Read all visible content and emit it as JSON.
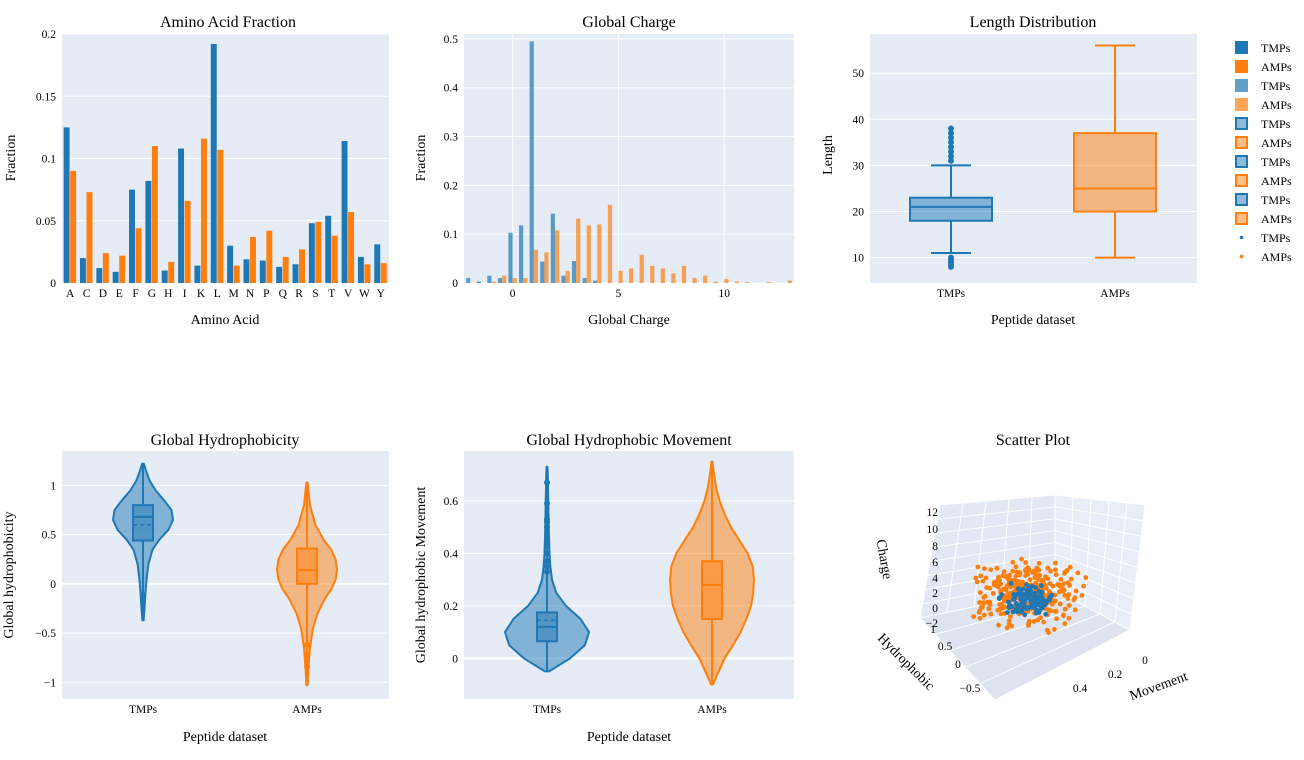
{
  "colors": {
    "tmp": "#1f77b4",
    "amp": "#ff7f0e",
    "plot_bg": "#e5ecf6",
    "grid": "#ffffff"
  },
  "legend": {
    "items": [
      {
        "label": "TMPs",
        "series": "tmp",
        "kind": "bar"
      },
      {
        "label": "AMPs",
        "series": "amp",
        "kind": "bar"
      },
      {
        "label": "TMPs",
        "series": "tmp",
        "kind": "hist"
      },
      {
        "label": "AMPs",
        "series": "amp",
        "kind": "hist"
      },
      {
        "label": "TMPs",
        "series": "tmp",
        "kind": "box"
      },
      {
        "label": "AMPs",
        "series": "amp",
        "kind": "box"
      },
      {
        "label": "TMPs",
        "series": "tmp",
        "kind": "box"
      },
      {
        "label": "AMPs",
        "series": "amp",
        "kind": "box"
      },
      {
        "label": "TMPs",
        "series": "tmp",
        "kind": "box"
      },
      {
        "label": "AMPs",
        "series": "amp",
        "kind": "box"
      },
      {
        "label": "TMPs",
        "series": "tmp",
        "kind": "dot"
      },
      {
        "label": "AMPs",
        "series": "amp",
        "kind": "dot"
      }
    ]
  },
  "chart_data": [
    {
      "id": "aa",
      "type": "bar",
      "title": "Amino Acid Fraction",
      "xlabel": "Amino Acid",
      "ylabel": "Fraction",
      "ylim": [
        0,
        0.2
      ],
      "yticks": [
        0,
        0.05,
        0.1,
        0.15,
        0.2
      ],
      "ytick_labels": [
        "0",
        "0.05",
        "0.1",
        "0.15",
        "0.2"
      ],
      "categories": [
        "A",
        "C",
        "D",
        "E",
        "F",
        "G",
        "H",
        "I",
        "K",
        "L",
        "M",
        "N",
        "P",
        "Q",
        "R",
        "S",
        "T",
        "V",
        "W",
        "Y"
      ],
      "series": [
        {
          "name": "TMPs",
          "values": [
            0.125,
            0.02,
            0.012,
            0.009,
            0.075,
            0.082,
            0.01,
            0.108,
            0.014,
            0.192,
            0.03,
            0.019,
            0.018,
            0.013,
            0.015,
            0.048,
            0.054,
            0.114,
            0.021,
            0.031
          ]
        },
        {
          "name": "AMPs",
          "values": [
            0.09,
            0.073,
            0.024,
            0.022,
            0.044,
            0.11,
            0.017,
            0.066,
            0.116,
            0.107,
            0.014,
            0.037,
            0.042,
            0.021,
            0.027,
            0.049,
            0.038,
            0.057,
            0.015,
            0.016
          ]
        }
      ]
    },
    {
      "id": "charge",
      "type": "bar",
      "title": "Global Charge",
      "xlabel": "Global Charge",
      "ylabel": "Fraction",
      "xlim": [
        -2.3,
        13.3
      ],
      "ylim": [
        0,
        0.51
      ],
      "xticks": [
        0,
        5,
        10
      ],
      "xtick_labels": [
        "0",
        "5",
        "10"
      ],
      "yticks": [
        0,
        0.1,
        0.2,
        0.3,
        0.4,
        0.5
      ],
      "ytick_labels": [
        "0",
        "0.1",
        "0.2",
        "0.3",
        "0.4",
        "0.5"
      ],
      "series": [
        {
          "name": "TMPs",
          "x": [
            -2,
            -1.5,
            -1,
            -0.5,
            0,
            0.5,
            1,
            1.5,
            2,
            2.5,
            3,
            3.5,
            4
          ],
          "values": [
            0.01,
            0.003,
            0.015,
            0.01,
            0.103,
            0.118,
            0.495,
            0.044,
            0.142,
            0.015,
            0.045,
            0.01,
            0.005
          ]
        },
        {
          "name": "AMPs",
          "x": [
            -1,
            -0.5,
            0,
            0.5,
            1,
            1.5,
            2,
            2.5,
            3,
            3.5,
            4,
            4.5,
            5,
            5.5,
            6,
            6.5,
            7,
            7.5,
            8,
            8.5,
            9,
            9.5,
            10,
            10.5,
            11,
            12,
            13
          ],
          "values": [
            0.003,
            0.015,
            0.01,
            0.01,
            0.068,
            0.063,
            0.108,
            0.025,
            0.132,
            0.118,
            0.12,
            0.16,
            0.025,
            0.03,
            0.058,
            0.035,
            0.03,
            0.02,
            0.035,
            0.01,
            0.015,
            0.003,
            0.008,
            0.003,
            0.002,
            0.002,
            0.005
          ]
        }
      ]
    },
    {
      "id": "length",
      "type": "box",
      "title": "Length Distribution",
      "xlabel": "Peptide dataset",
      "ylabel": "Length",
      "categories": [
        "TMPs",
        "AMPs"
      ],
      "ylim": [
        4.5,
        58.5
      ],
      "yticks": [
        10,
        20,
        30,
        40,
        50
      ],
      "ytick_labels": [
        "10",
        "20",
        "30",
        "40",
        "50"
      ],
      "series": [
        {
          "name": "TMPs",
          "min": 11,
          "q1": 18,
          "median": 21,
          "q3": 23,
          "max": 30,
          "outliers": [
            8,
            8.5,
            9,
            9.5,
            10,
            31,
            32,
            33,
            34,
            35,
            36,
            37,
            38
          ]
        },
        {
          "name": "AMPs",
          "min": 10,
          "q1": 20,
          "median": 25,
          "q3": 37,
          "max": 56,
          "outliers": []
        }
      ]
    },
    {
      "id": "hydro",
      "type": "violin",
      "title": "Global Hydrophobicity",
      "xlabel": "Peptide dataset",
      "ylabel": "Global hydrophobicity",
      "categories": [
        "TMPs",
        "AMPs"
      ],
      "ylim": [
        -1.17,
        1.35
      ],
      "yticks": [
        -1,
        -0.5,
        0,
        0.5,
        1
      ],
      "ytick_labels": [
        "−1",
        "−0.5",
        "0",
        "0.5",
        "1"
      ],
      "series": [
        {
          "name": "TMPs",
          "min": -0.37,
          "q1": 0.44,
          "median": 0.68,
          "mean": 0.6,
          "q3": 0.8,
          "max": 1.22,
          "outliers": [
            -0.12,
            -0.15,
            -0.18
          ],
          "density_y": [
            -0.37,
            -0.25,
            -0.1,
            0.05,
            0.2,
            0.35,
            0.45,
            0.55,
            0.65,
            0.75,
            0.85,
            0.95,
            1.05,
            1.15,
            1.22
          ],
          "density_w": [
            0.02,
            0.05,
            0.08,
            0.12,
            0.18,
            0.32,
            0.55,
            0.85,
            1.0,
            0.95,
            0.7,
            0.42,
            0.22,
            0.1,
            0.03
          ]
        },
        {
          "name": "AMPs",
          "min": -1.03,
          "q1": 0.0,
          "median": 0.14,
          "mean": 0.14,
          "q3": 0.36,
          "max": 1.03,
          "outliers": [
            -0.62,
            -0.72,
            -0.84
          ],
          "density_y": [
            -1.03,
            -0.85,
            -0.65,
            -0.45,
            -0.3,
            -0.15,
            -0.05,
            0.05,
            0.15,
            0.25,
            0.35,
            0.45,
            0.6,
            0.8,
            1.03
          ],
          "density_w": [
            0.02,
            0.05,
            0.1,
            0.2,
            0.35,
            0.6,
            0.82,
            0.96,
            1.0,
            0.95,
            0.8,
            0.55,
            0.28,
            0.1,
            0.02
          ]
        }
      ]
    },
    {
      "id": "movement",
      "type": "violin",
      "title": "Global Hydrophobic Movement",
      "xlabel": "Peptide dataset",
      "ylabel": "Global hydrophobic Movement",
      "categories": [
        "TMPs",
        "AMPs"
      ],
      "ylim": [
        -0.155,
        0.79
      ],
      "yticks": [
        0,
        0.2,
        0.4,
        0.6
      ],
      "ytick_labels": [
        "0",
        "0.2",
        "0.4",
        "0.6"
      ],
      "series": [
        {
          "name": "TMPs",
          "min": -0.05,
          "q1": 0.065,
          "median": 0.12,
          "mean": 0.145,
          "q3": 0.175,
          "max": 0.73,
          "outliers": [
            0.33,
            0.35,
            0.37,
            0.4,
            0.43,
            0.45,
            0.5,
            0.52,
            0.53,
            0.59,
            0.67
          ],
          "density_y": [
            -0.05,
            0.0,
            0.05,
            0.1,
            0.15,
            0.2,
            0.25,
            0.3,
            0.35,
            0.4,
            0.45,
            0.5,
            0.55,
            0.6,
            0.65,
            0.7,
            0.73
          ],
          "density_w": [
            0.05,
            0.55,
            0.9,
            1.0,
            0.8,
            0.45,
            0.22,
            0.12,
            0.08,
            0.06,
            0.05,
            0.04,
            0.035,
            0.03,
            0.025,
            0.02,
            0.01
          ]
        },
        {
          "name": "AMPs",
          "min": -0.1,
          "q1": 0.15,
          "median": 0.28,
          "mean": 0.28,
          "q3": 0.37,
          "max": 0.75,
          "outliers": [],
          "density_y": [
            -0.1,
            0.0,
            0.05,
            0.1,
            0.15,
            0.2,
            0.25,
            0.3,
            0.35,
            0.4,
            0.45,
            0.5,
            0.55,
            0.6,
            0.65,
            0.7,
            0.75
          ],
          "density_w": [
            0.02,
            0.3,
            0.5,
            0.68,
            0.82,
            0.93,
            0.98,
            1.0,
            0.97,
            0.85,
            0.65,
            0.45,
            0.3,
            0.18,
            0.1,
            0.05,
            0.01
          ]
        }
      ]
    },
    {
      "id": "scatter3d",
      "type": "scatter",
      "title": "Scatter Plot",
      "zlabel": "Charge",
      "ylabel": "Hydrophobic",
      "xlabel": "Movement",
      "zticks": [
        "−2",
        "0",
        "2",
        "4",
        "6",
        "8",
        "10",
        "12"
      ],
      "yticks": [
        "−0.5",
        "0",
        "0.5",
        "1"
      ],
      "xticks": [
        "0.4",
        "0.2",
        "0"
      ],
      "series": [
        {
          "name": "TMPs",
          "points": 120,
          "charge_range": [
            -1,
            4
          ],
          "hydro_range": [
            0.2,
            1.2
          ],
          "movement_range": [
            0,
            0.7
          ]
        },
        {
          "name": "AMPs",
          "points": 300,
          "charge_range": [
            -2,
            12
          ],
          "hydro_range": [
            -1,
            1
          ],
          "movement_range": [
            0,
            0.75
          ]
        }
      ]
    }
  ]
}
